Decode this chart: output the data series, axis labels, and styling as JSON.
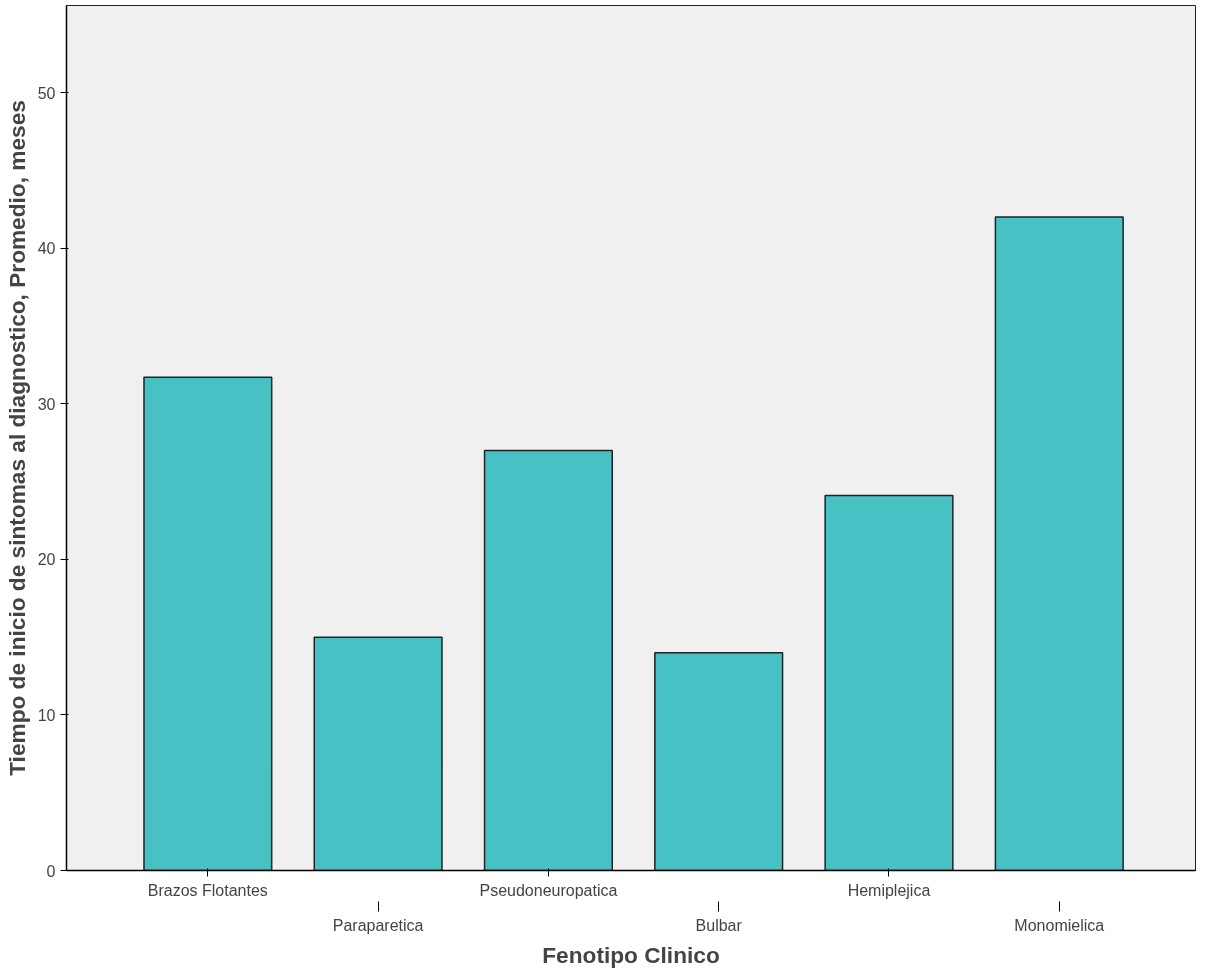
{
  "chart_data": {
    "type": "bar",
    "xlabel": "Fenotipo Clinico",
    "ylabel": "Tiempo de inicio de sintomas al diagnostico, Promedio, meses",
    "categories": [
      "Brazos Flotantes",
      "Paraparetica",
      "Pseudoneuropatica",
      "Bulbar",
      "Hemiplejica",
      "Monomielica"
    ],
    "values": [
      31.7,
      15.0,
      27.0,
      14.0,
      24.1,
      42.0
    ],
    "color": "#47c1c4",
    "ylim": [
      0,
      55.6
    ],
    "yticks": [
      0,
      10,
      20,
      30,
      40,
      50
    ],
    "grid": false
  }
}
